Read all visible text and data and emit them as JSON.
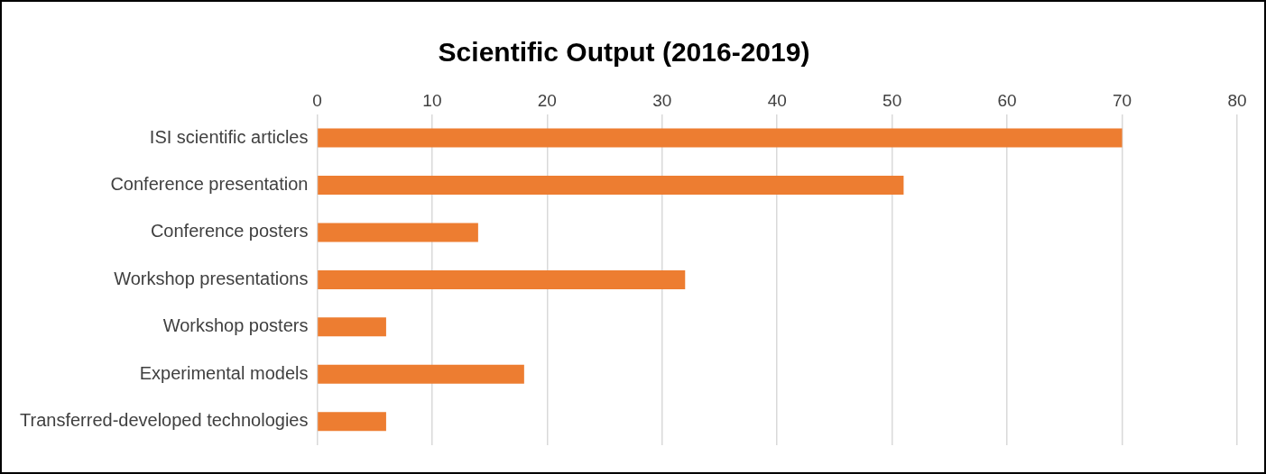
{
  "chart_data": {
    "type": "bar",
    "orientation": "horizontal",
    "title": "Scientific Output (2016-2019)",
    "categories": [
      "ISI scientific articles",
      "Conference presentation",
      "Conference posters",
      "Workshop presentations",
      "Workshop posters",
      "Experimental models",
      "Transferred-developed technologies"
    ],
    "values": [
      70,
      51,
      14,
      32,
      6,
      18,
      6
    ],
    "color": "#ed7d31",
    "xlim": [
      0,
      80
    ],
    "xticks": [
      0,
      10,
      20,
      30,
      40,
      50,
      60,
      70,
      80
    ],
    "grid": "x",
    "legend": false
  }
}
